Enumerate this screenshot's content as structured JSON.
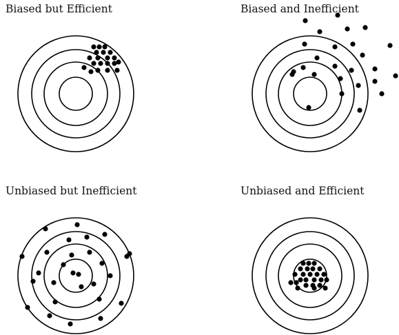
{
  "diagram": {
    "ink_color": "#000000",
    "background": "#ffffff",
    "panels": [
      {
        "id": "biased-efficient",
        "title": "Biased but Efficient",
        "shots": [
          [
            136,
            68
          ],
          [
            144,
            68
          ],
          [
            152,
            68
          ],
          [
            140,
            76
          ],
          [
            150,
            76
          ],
          [
            160,
            76
          ],
          [
            130,
            84
          ],
          [
            142,
            84
          ],
          [
            156,
            84
          ],
          [
            166,
            84
          ],
          [
            136,
            92
          ],
          [
            146,
            92
          ],
          [
            156,
            92
          ],
          [
            166,
            92
          ],
          [
            122,
            98
          ],
          [
            142,
            102
          ],
          [
            156,
            102
          ],
          [
            170,
            102
          ],
          [
            132,
            104
          ],
          [
            172,
            90
          ]
        ]
      },
      {
        "id": "biased-inefficient",
        "title": "Biased and Inefficient",
        "shots": [
          [
            443,
            30
          ],
          [
            490,
            22
          ],
          [
            504,
            42
          ],
          [
            530,
            40
          ],
          [
            464,
            46
          ],
          [
            442,
            64
          ],
          [
            486,
            68
          ],
          [
            512,
            64
          ],
          [
            566,
            66
          ],
          [
            526,
            80
          ],
          [
            460,
            84
          ],
          [
            486,
            96
          ],
          [
            510,
            102
          ],
          [
            544,
            100
          ],
          [
            574,
            110
          ],
          [
            426,
            104
          ],
          [
            440,
            98
          ],
          [
            456,
            108
          ],
          [
            494,
            114
          ],
          [
            520,
            124
          ],
          [
            544,
            118
          ],
          [
            424,
            108
          ],
          [
            496,
            136
          ],
          [
            554,
            136
          ],
          [
            448,
            156
          ],
          [
            522,
            160
          ]
        ]
      },
      {
        "id": "unbiased-inefficient",
        "title": "Unbiased but Inefficient",
        "shots": [
          [
            66,
            332
          ],
          [
            112,
            326
          ],
          [
            152,
            340
          ],
          [
            100,
            348
          ],
          [
            126,
            344
          ],
          [
            68,
            366
          ],
          [
            32,
            372
          ],
          [
            104,
            370
          ],
          [
            130,
            366
          ],
          [
            188,
            368
          ],
          [
            184,
            372
          ],
          [
            92,
            384
          ],
          [
            148,
            382
          ],
          [
            114,
            398
          ],
          [
            56,
            396
          ],
          [
            78,
            410
          ],
          [
            106,
            396
          ],
          [
            48,
            408
          ],
          [
            136,
            412
          ],
          [
            160,
            400
          ],
          [
            118,
            416
          ],
          [
            80,
            438
          ],
          [
            144,
            434
          ],
          [
            176,
            440
          ],
          [
            40,
            446
          ],
          [
            72,
            458
          ],
          [
            102,
            470
          ],
          [
            146,
            462
          ]
        ]
      },
      {
        "id": "unbiased-efficient",
        "title": "Unbiased and Efficient",
        "shots": [
          [
            440,
            382
          ],
          [
            448,
            382
          ],
          [
            456,
            382
          ],
          [
            436,
            390
          ],
          [
            446,
            390
          ],
          [
            454,
            390
          ],
          [
            464,
            390
          ],
          [
            428,
            398
          ],
          [
            440,
            398
          ],
          [
            450,
            398
          ],
          [
            460,
            398
          ],
          [
            470,
            398
          ],
          [
            436,
            406
          ],
          [
            444,
            406
          ],
          [
            456,
            406
          ],
          [
            466,
            406
          ],
          [
            474,
            406
          ],
          [
            422,
            410
          ],
          [
            444,
            414
          ],
          [
            454,
            414
          ],
          [
            464,
            414
          ],
          [
            432,
            418
          ],
          [
            456,
            418
          ],
          [
            472,
            418
          ],
          [
            430,
            410
          ]
        ]
      }
    ]
  }
}
